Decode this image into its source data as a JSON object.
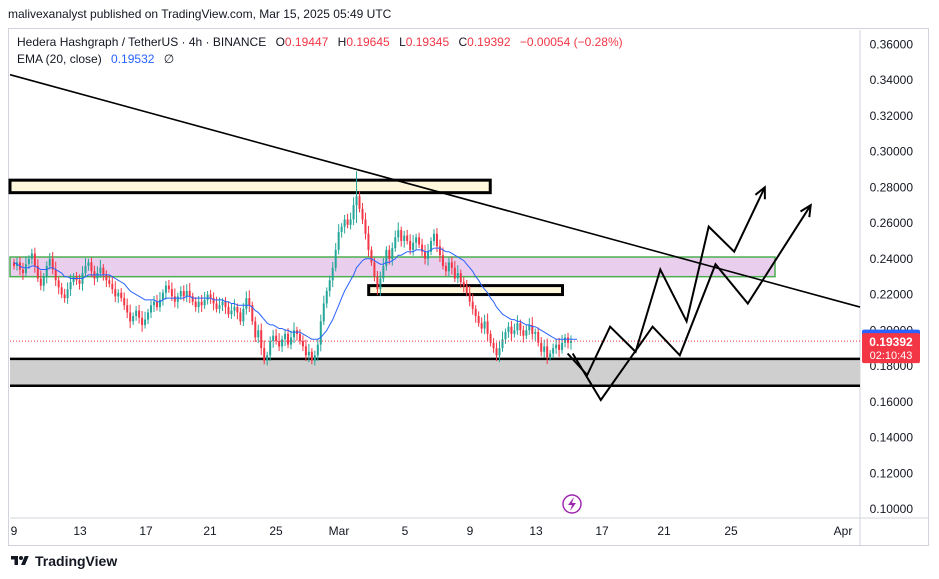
{
  "header": {
    "published": "malivexanalyst published on TradingView.com, Mar 15, 2025 05:49 UTC"
  },
  "legend": {
    "symbol": "Hedera Hashgraph / TetherUS · 4h · BINANCE",
    "o_label": "O",
    "o": "0.19447",
    "h_label": "H",
    "h": "0.19645",
    "l_label": "L",
    "l": "0.19345",
    "c_label": "C",
    "c": "0.19392",
    "change": "−0.00054 (−0.28%)",
    "ema_label": "EMA (20, close)",
    "ema_value": "0.19532",
    "ema_icon": "null-set-icon",
    "ema_symbol": "∅"
  },
  "footer": {
    "brand": "TradingView"
  },
  "colors": {
    "up": "#26a69a",
    "down": "#f23645",
    "ema": "#2962ff",
    "zone_pink": "#e1bee7",
    "zone_green": "#4caf50",
    "zone_yellow": "#fff8dc",
    "zone_gray": "#cfcfcf",
    "grid": "#f0f3fa"
  },
  "chart_data": {
    "type": "candlestick",
    "title": "Hedera Hashgraph / TetherUS · 4h · BINANCE",
    "x_ticks": [
      "9",
      "13",
      "17",
      "21",
      "25",
      "Mar",
      "5",
      "9",
      "13",
      "17",
      "21",
      "25",
      "Apr"
    ],
    "y_ticks": [
      "0.36000",
      "0.34000",
      "0.32000",
      "0.30000",
      "0.28000",
      "0.26000",
      "0.24000",
      "0.22000",
      "0.20000",
      "0.18000",
      "0.16000",
      "0.14000",
      "0.12000",
      "0.10000"
    ],
    "ylim": [
      0.095,
      0.368
    ],
    "price_labels": {
      "ema": "0.19532",
      "last": "0.19392",
      "countdown": "02:10:43"
    },
    "series_close": [
      0.236,
      0.238,
      0.234,
      0.232,
      0.237,
      0.24,
      0.243,
      0.236,
      0.229,
      0.225,
      0.23,
      0.236,
      0.24,
      0.234,
      0.228,
      0.224,
      0.22,
      0.218,
      0.223,
      0.227,
      0.23,
      0.228,
      0.226,
      0.232,
      0.236,
      0.238,
      0.233,
      0.229,
      0.232,
      0.235,
      0.231,
      0.228,
      0.226,
      0.223,
      0.219,
      0.221,
      0.218,
      0.214,
      0.21,
      0.205,
      0.208,
      0.211,
      0.207,
      0.203,
      0.206,
      0.21,
      0.214,
      0.216,
      0.213,
      0.217,
      0.221,
      0.225,
      0.223,
      0.219,
      0.216,
      0.219,
      0.222,
      0.219,
      0.222,
      0.219,
      0.216,
      0.213,
      0.216,
      0.214,
      0.217,
      0.22,
      0.218,
      0.215,
      0.212,
      0.214,
      0.216,
      0.213,
      0.209,
      0.211,
      0.213,
      0.21,
      0.205,
      0.212,
      0.218,
      0.214,
      0.205,
      0.196,
      0.2,
      0.19,
      0.183,
      0.186,
      0.194,
      0.197,
      0.194,
      0.191,
      0.195,
      0.198,
      0.192,
      0.196,
      0.2,
      0.198,
      0.194,
      0.191,
      0.186,
      0.188,
      0.183,
      0.186,
      0.192,
      0.205,
      0.215,
      0.222,
      0.228,
      0.235,
      0.245,
      0.255,
      0.258,
      0.262,
      0.259,
      0.262,
      0.27,
      0.275,
      0.268,
      0.262,
      0.254,
      0.245,
      0.238,
      0.23,
      0.223,
      0.229,
      0.236,
      0.245,
      0.24,
      0.246,
      0.252,
      0.256,
      0.25,
      0.253,
      0.25,
      0.245,
      0.249,
      0.252,
      0.248,
      0.244,
      0.24,
      0.244,
      0.25,
      0.254,
      0.247,
      0.242,
      0.236,
      0.233,
      0.238,
      0.235,
      0.229,
      0.232,
      0.227,
      0.225,
      0.221,
      0.216,
      0.212,
      0.208,
      0.204,
      0.201,
      0.205,
      0.198,
      0.193,
      0.19,
      0.186,
      0.19,
      0.195,
      0.199,
      0.202,
      0.198,
      0.2,
      0.204,
      0.2,
      0.197,
      0.2,
      0.203,
      0.198,
      0.199,
      0.193,
      0.188,
      0.191,
      0.185,
      0.187,
      0.19,
      0.192,
      0.189,
      0.193,
      0.196,
      0.193,
      0.194
    ],
    "ema_series": [
      0.238,
      0.237,
      0.236,
      0.235,
      0.235,
      0.235,
      0.236,
      0.236,
      0.235,
      0.234,
      0.234,
      0.234,
      0.235,
      0.235,
      0.234,
      0.233,
      0.232,
      0.23,
      0.23,
      0.229,
      0.229,
      0.229,
      0.229,
      0.229,
      0.23,
      0.231,
      0.231,
      0.231,
      0.231,
      0.231,
      0.231,
      0.231,
      0.231,
      0.23,
      0.229,
      0.228,
      0.227,
      0.226,
      0.224,
      0.222,
      0.221,
      0.22,
      0.219,
      0.218,
      0.217,
      0.217,
      0.217,
      0.217,
      0.216,
      0.216,
      0.217,
      0.218,
      0.218,
      0.218,
      0.218,
      0.218,
      0.218,
      0.218,
      0.219,
      0.219,
      0.218,
      0.218,
      0.218,
      0.218,
      0.218,
      0.218,
      0.218,
      0.217,
      0.217,
      0.217,
      0.217,
      0.216,
      0.216,
      0.215,
      0.215,
      0.214,
      0.214,
      0.214,
      0.214,
      0.214,
      0.213,
      0.211,
      0.21,
      0.208,
      0.206,
      0.204,
      0.203,
      0.203,
      0.202,
      0.201,
      0.201,
      0.2,
      0.2,
      0.199,
      0.199,
      0.199,
      0.199,
      0.198,
      0.197,
      0.196,
      0.195,
      0.195,
      0.195,
      0.196,
      0.198,
      0.2,
      0.203,
      0.206,
      0.21,
      0.214,
      0.218,
      0.222,
      0.225,
      0.228,
      0.231,
      0.235,
      0.237,
      0.239,
      0.24,
      0.24,
      0.24,
      0.239,
      0.238,
      0.237,
      0.237,
      0.238,
      0.238,
      0.239,
      0.24,
      0.242,
      0.242,
      0.243,
      0.244,
      0.244,
      0.244,
      0.245,
      0.245,
      0.245,
      0.244,
      0.244,
      0.245,
      0.246,
      0.246,
      0.246,
      0.245,
      0.244,
      0.244,
      0.243,
      0.242,
      0.241,
      0.24,
      0.239,
      0.237,
      0.235,
      0.233,
      0.23,
      0.228,
      0.225,
      0.223,
      0.221,
      0.218,
      0.216,
      0.213,
      0.211,
      0.209,
      0.208,
      0.207,
      0.206,
      0.206,
      0.205,
      0.205,
      0.204,
      0.203,
      0.203,
      0.202,
      0.202,
      0.201,
      0.2,
      0.199,
      0.198,
      0.197,
      0.196,
      0.195,
      0.195,
      0.195,
      0.195,
      0.195,
      0.195,
      0.195,
      0.195
    ],
    "trendline": [
      [
        0,
        0.343
      ],
      [
        1.0,
        0.213
      ]
    ],
    "zones": [
      {
        "name": "upper-resistance",
        "y_top": 0.284,
        "y_bottom": 0.277,
        "x0": 0,
        "x1": 0.565,
        "style": "yellow"
      },
      {
        "name": "mid-resistance",
        "y_top": 0.241,
        "y_bottom": 0.23,
        "x0": 0,
        "x1": 0.9,
        "style": "pink"
      },
      {
        "name": "mid-support",
        "y_top": 0.225,
        "y_bottom": 0.22,
        "x0": 0.422,
        "x1": 0.65,
        "style": "yellow"
      },
      {
        "name": "demand",
        "y_top": 0.184,
        "y_bottom": 0.169,
        "x0": 0,
        "x1": 1.0,
        "style": "gray"
      }
    ],
    "projection_paths": [
      [
        [
          0.656,
          0.187
        ],
        [
          0.679,
          0.175
        ],
        [
          0.706,
          0.202
        ],
        [
          0.736,
          0.188
        ],
        [
          0.765,
          0.234
        ],
        [
          0.796,
          0.205
        ],
        [
          0.822,
          0.258
        ],
        [
          0.852,
          0.244
        ],
        [
          0.888,
          0.28
        ]
      ],
      [
        [
          0.662,
          0.187
        ],
        [
          0.695,
          0.161
        ],
        [
          0.756,
          0.202
        ],
        [
          0.788,
          0.186
        ],
        [
          0.83,
          0.237
        ],
        [
          0.868,
          0.215
        ],
        [
          0.942,
          0.27
        ]
      ]
    ]
  }
}
